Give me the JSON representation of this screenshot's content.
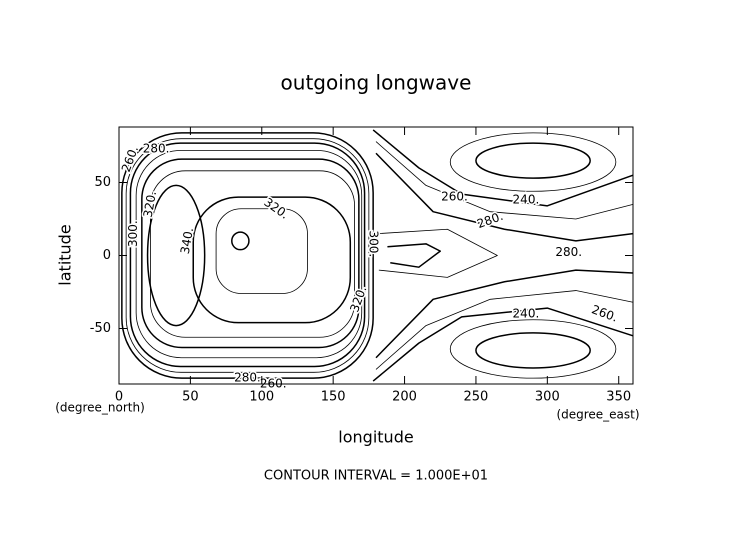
{
  "chart_data": {
    "type": "contour",
    "title": "outgoing longwave",
    "x_label": "longitude",
    "y_label": "latitude",
    "x_unit": "(degree_east)",
    "y_unit": "(degree_north)",
    "footer": "CONTOUR INTERVAL = 1.000E+01",
    "xlim": [
      0,
      360
    ],
    "ylim": [
      -88,
      88
    ],
    "xticks": [
      0,
      50,
      100,
      150,
      200,
      250,
      300,
      350
    ],
    "yticks": [
      -50,
      0,
      50
    ],
    "levels": [
      240,
      250,
      260,
      270,
      280,
      290,
      300,
      310,
      320,
      330,
      340
    ],
    "color": "#000000",
    "contour_labels": [
      {
        "value": 260,
        "label": "260."
      },
      {
        "value": 280,
        "label": "280."
      },
      {
        "value": 320,
        "label": "320."
      },
      {
        "value": 300,
        "label": "300."
      },
      {
        "value": 340,
        "label": "340."
      },
      {
        "value": 320,
        "label": "320."
      },
      {
        "value": 300,
        "label": "300."
      },
      {
        "value": 320,
        "label": "320."
      },
      {
        "value": 260,
        "label": "260."
      },
      {
        "value": 240,
        "label": "240."
      },
      {
        "value": 280,
        "label": "280."
      },
      {
        "value": 280,
        "label": "280."
      },
      {
        "value": 240,
        "label": "240."
      },
      {
        "value": 260,
        "label": "260."
      },
      {
        "value": 280,
        "label": "280."
      },
      {
        "value": 260,
        "label": "260."
      }
    ]
  }
}
